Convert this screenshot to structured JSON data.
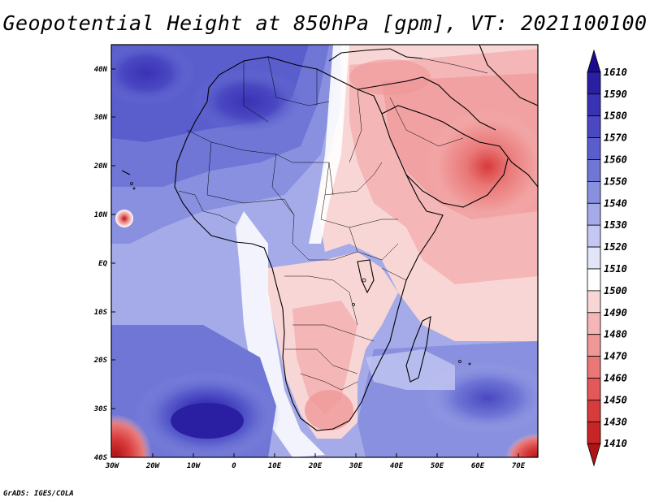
{
  "title": "Geopotential Height at 850hPa [gpm], VT: 2021100100",
  "credit": "GrADS: IGES/COLA",
  "map": {
    "lat_labels": [
      "40N",
      "30N",
      "20N",
      "10N",
      "EQ",
      "10S",
      "20S",
      "30S",
      "40S"
    ],
    "lon_labels": [
      "30W",
      "20W",
      "10W",
      "0",
      "10E",
      "20E",
      "30E",
      "40E",
      "50E",
      "60E",
      "70E"
    ],
    "colorbar": {
      "levels": [
        "1610",
        "1590",
        "1580",
        "1570",
        "1560",
        "1550",
        "1540",
        "1530",
        "1520",
        "1510",
        "1500",
        "1490",
        "1480",
        "1470",
        "1460",
        "1450",
        "1430",
        "1410"
      ],
      "colors": [
        "#1a0a8c",
        "#2a1fa3",
        "#3a32b5",
        "#4a48c2",
        "#5a5ecd",
        "#6f76d6",
        "#8890df",
        "#a5abe8",
        "#c3c7f1",
        "#e2e4f8",
        "#ffffff",
        "#f8d6d6",
        "#f4b6b6",
        "#f09898",
        "#ea7878",
        "#e35858",
        "#d83b3b",
        "#c82626",
        "#b01414"
      ]
    }
  }
}
